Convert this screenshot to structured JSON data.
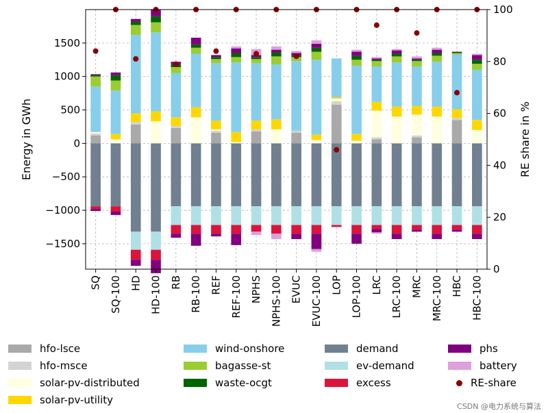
{
  "chart_data": {
    "type": "bar",
    "stacked": true,
    "ylabel": "Energy in GWh",
    "y2label": "RE share in %",
    "ylim": [
      -1880,
      2000
    ],
    "y2lim": [
      0,
      100
    ],
    "yticks": [
      -1500,
      -1000,
      -500,
      0,
      500,
      1000,
      1500
    ],
    "y2ticks": [
      0,
      20,
      40,
      60,
      80,
      100
    ],
    "grid": true,
    "legend_position": "bottom",
    "categories": [
      "SQ",
      "SQ-100",
      "HD",
      "HD-100",
      "RB",
      "RB-100",
      "REF",
      "REF-100",
      "NPHS",
      "NPHS-100",
      "EVUC",
      "EVUC-100",
      "LOP",
      "LOP-100",
      "LRC",
      "LRC-100",
      "MRC",
      "MRC-100",
      "HBC",
      "HBC-100"
    ],
    "positive_series": [
      {
        "name": "hfo-lsce",
        "color": "#a9a9a9",
        "values": [
          120,
          0,
          280,
          0,
          230,
          0,
          160,
          0,
          180,
          0,
          160,
          0,
          580,
          0,
          60,
          0,
          90,
          0,
          350,
          0
        ]
      },
      {
        "name": "hfo-msce",
        "color": "#d3d3d3",
        "values": [
          30,
          0,
          40,
          0,
          30,
          0,
          30,
          0,
          30,
          0,
          30,
          0,
          50,
          0,
          30,
          0,
          30,
          0,
          30,
          0
        ]
      },
      {
        "name": "solar-pv-distributed",
        "color": "#ffffe0",
        "values": [
          20,
          60,
          0,
          330,
          0,
          390,
          20,
          20,
          0,
          210,
          0,
          50,
          40,
          40,
          400,
          400,
          310,
          400,
          0,
          200
        ]
      },
      {
        "name": "solar-pv-utility",
        "color": "#ffd700",
        "values": [
          0,
          80,
          130,
          150,
          130,
          150,
          130,
          150,
          130,
          150,
          0,
          80,
          20,
          100,
          130,
          150,
          130,
          150,
          130,
          150
        ]
      },
      {
        "name": "wind-onshore",
        "color": "#87ceeb",
        "values": [
          680,
          650,
          1170,
          1180,
          660,
          800,
          860,
          1040,
          860,
          820,
          1040,
          1120,
          580,
          1020,
          530,
          660,
          590,
          670,
          820,
          750
        ]
      },
      {
        "name": "bagasse-st",
        "color": "#9acd32",
        "values": [
          150,
          150,
          150,
          150,
          90,
          90,
          60,
          80,
          60,
          120,
          60,
          120,
          0,
          90,
          80,
          90,
          80,
          90,
          20,
          90
        ]
      },
      {
        "name": "waste-ocgt",
        "color": "#006400",
        "values": [
          20,
          80,
          50,
          90,
          40,
          50,
          30,
          60,
          30,
          60,
          30,
          60,
          0,
          60,
          20,
          40,
          20,
          40,
          10,
          60
        ]
      },
      {
        "name": "phs",
        "color": "#800080",
        "values": [
          15,
          40,
          40,
          100,
          40,
          100,
          30,
          70,
          30,
          40,
          30,
          60,
          0,
          60,
          20,
          50,
          20,
          50,
          10,
          70
        ]
      },
      {
        "name": "battery",
        "color": "#dda0dd",
        "values": [
          0,
          0,
          0,
          0,
          0,
          0,
          0,
          30,
          90,
          50,
          30,
          50,
          0,
          30,
          20,
          20,
          30,
          30,
          0,
          20
        ]
      }
    ],
    "negative_series": [
      {
        "name": "demand",
        "color": "#708090",
        "values": [
          -940,
          -940,
          -1320,
          -1320,
          -940,
          -940,
          -940,
          -940,
          -940,
          -940,
          -940,
          -940,
          -940,
          -940,
          -940,
          -940,
          -940,
          -940,
          -940,
          -940
        ]
      },
      {
        "name": "ev-demand",
        "color": "#b0e0e6",
        "values": [
          0,
          0,
          -270,
          -270,
          -280,
          -280,
          -280,
          -280,
          -280,
          -280,
          -280,
          -280,
          -280,
          -280,
          -280,
          -280,
          -280,
          -280,
          -280,
          -280
        ]
      },
      {
        "name": "excess",
        "color": "#dc143c",
        "values": [
          -40,
          -80,
          -150,
          -150,
          -130,
          -130,
          -130,
          -130,
          -100,
          -130,
          -130,
          -130,
          -30,
          -130,
          -60,
          -130,
          -70,
          -130,
          -70,
          -130
        ]
      },
      {
        "name": "phs",
        "color": "#800080",
        "values": [
          -30,
          -50,
          -90,
          -200,
          -60,
          -180,
          -40,
          -170,
          0,
          0,
          -80,
          -230,
          0,
          -150,
          -50,
          -80,
          -30,
          -80,
          -30,
          -80
        ]
      },
      {
        "name": "battery",
        "color": "#dda0dd",
        "values": [
          0,
          0,
          0,
          0,
          0,
          0,
          0,
          0,
          -50,
          -80,
          0,
          -40,
          0,
          0,
          -20,
          0,
          0,
          0,
          0,
          0
        ]
      }
    ],
    "re_share": {
      "name": "RE-share",
      "color": "#8b0000",
      "values": [
        84,
        100,
        81,
        100,
        79,
        100,
        84,
        100,
        83,
        100,
        82,
        100,
        46,
        100,
        94,
        100,
        91,
        100,
        68,
        100
      ]
    },
    "legend": [
      {
        "name": "hfo-lsce",
        "color": "#a9a9a9",
        "kind": "patch"
      },
      {
        "name": "hfo-msce",
        "color": "#d3d3d3",
        "kind": "patch"
      },
      {
        "name": "solar-pv-distributed",
        "color": "#ffffe0",
        "kind": "patch"
      },
      {
        "name": "solar-pv-utility",
        "color": "#ffd700",
        "kind": "patch"
      },
      {
        "name": "wind-onshore",
        "color": "#87ceeb",
        "kind": "patch"
      },
      {
        "name": "bagasse-st",
        "color": "#9acd32",
        "kind": "patch"
      },
      {
        "name": "waste-ocgt",
        "color": "#006400",
        "kind": "patch"
      },
      {
        "name": "demand",
        "color": "#708090",
        "kind": "patch"
      },
      {
        "name": "ev-demand",
        "color": "#b0e0e6",
        "kind": "patch"
      },
      {
        "name": "excess",
        "color": "#dc143c",
        "kind": "patch"
      },
      {
        "name": "phs",
        "color": "#800080",
        "kind": "patch"
      },
      {
        "name": "battery",
        "color": "#dda0dd",
        "kind": "patch"
      },
      {
        "name": "RE-share",
        "color": "#8b0000",
        "kind": "dot"
      }
    ]
  },
  "watermark": "CSDN @电力系统与算法"
}
